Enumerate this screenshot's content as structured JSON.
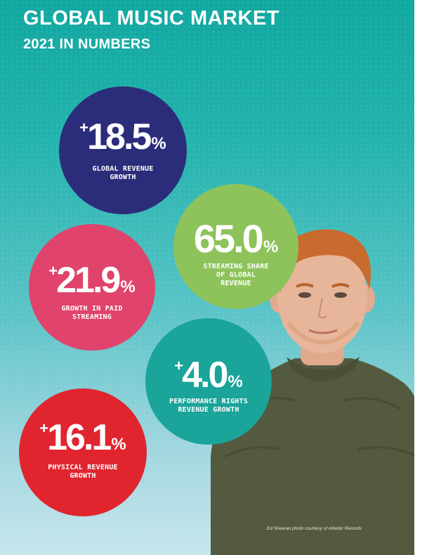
{
  "header": {
    "title": "GLOBAL MUSIC MARKET",
    "subtitle": "2021 IN NUMBERS"
  },
  "stats": [
    {
      "plus": "+",
      "value": "18.5",
      "unit": "%",
      "label_lines": [
        "GLOBAL REVENUE",
        "GROWTH"
      ],
      "color": "#2b2d7a"
    },
    {
      "plus": "",
      "value": "65.0",
      "unit": "%",
      "label_lines": [
        "STREAMING SHARE",
        "OF GLOBAL",
        "REVENUE"
      ],
      "color": "#8dc35a"
    },
    {
      "plus": "+",
      "value": "21.9",
      "unit": "%",
      "label_lines": [
        "GROWTH IN PAID",
        "STREAMING"
      ],
      "color": "#e0436b"
    },
    {
      "plus": "+",
      "value": "4.0",
      "unit": "%",
      "label_lines": [
        "PERFORMANCE RIGHTS",
        "REVENUE GROWTH"
      ],
      "color": "#1aa49a"
    },
    {
      "plus": "+",
      "value": "16.1",
      "unit": "%",
      "label_lines": [
        "PHYSICAL REVENUE",
        "GROWTH"
      ],
      "color": "#e1252f"
    }
  ],
  "photo": {
    "caption": "Ed Sheeran photo courtesy of Atlantic Records",
    "icon": "person-photo"
  },
  "colors": {
    "background_top": "#10a8a0",
    "background_bottom": "#c8e5ec",
    "sweater": "#545a3f",
    "hair": "#c96a2e",
    "skin": "#e7b59a"
  }
}
